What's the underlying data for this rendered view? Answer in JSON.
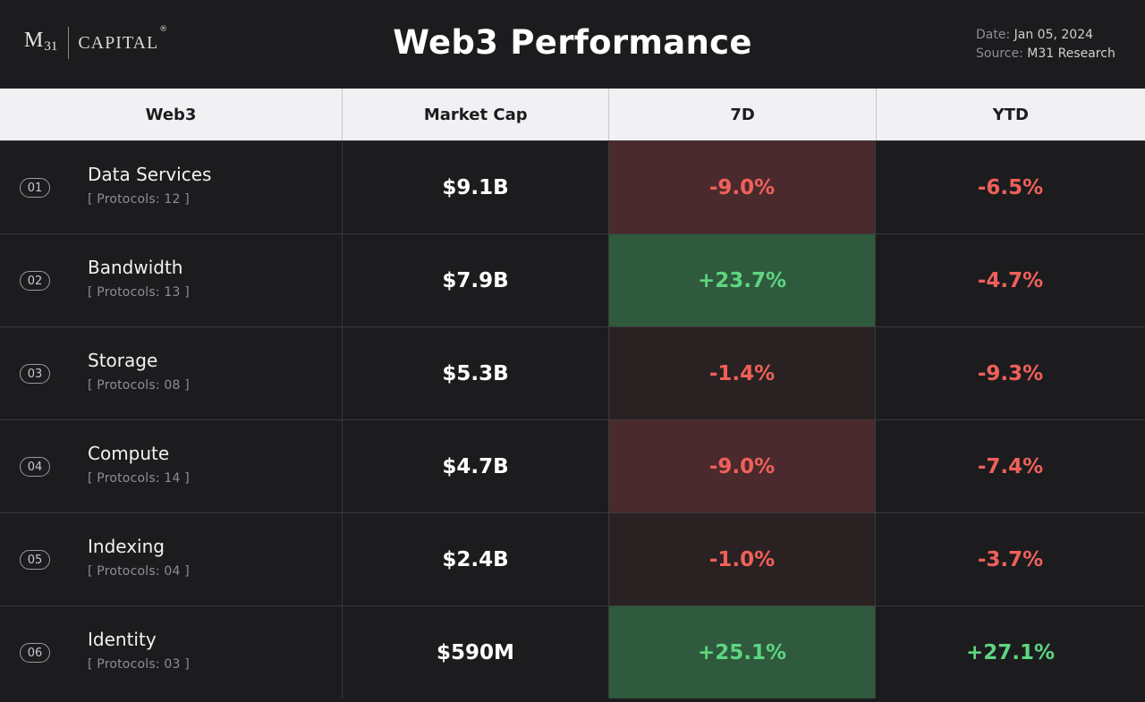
{
  "header": {
    "logo_m": "M",
    "logo_num": "31",
    "logo_name": "CAPITAL",
    "logo_reg": "®",
    "title": "Web3 Performance",
    "date_label": "Date:",
    "date_value": "Jan 05, 2024",
    "source_label": "Source:",
    "source_value": "M31 Research"
  },
  "colors": {
    "negative_text": "#f0605a",
    "positive_text": "#5ed680",
    "strong_negative_bg": "#4a2a2c",
    "weak_negative_bg": "#2a2222",
    "strong_positive_bg": "#2f5a3d",
    "neutral_bg": "#1c1c1e"
  },
  "chart_data": {
    "type": "table",
    "title": "Web3 Performance",
    "columns": [
      "Web3",
      "Market Cap",
      "7D",
      "YTD"
    ],
    "rows": [
      {
        "num": "01",
        "name": "Data Services",
        "protocols": "[ Protocols: 12 ]",
        "market_cap": "$9.1B",
        "d7": "-9.0%",
        "ytd": "-6.5%",
        "d7_value": -9.0,
        "ytd_value": -6.5
      },
      {
        "num": "02",
        "name": "Bandwidth",
        "protocols": "[ Protocols: 13 ]",
        "market_cap": "$7.9B",
        "d7": "+23.7%",
        "ytd": "-4.7%",
        "d7_value": 23.7,
        "ytd_value": -4.7
      },
      {
        "num": "03",
        "name": "Storage",
        "protocols": "[ Protocols: 08 ]",
        "market_cap": "$5.3B",
        "d7": "-1.4%",
        "ytd": "-9.3%",
        "d7_value": -1.4,
        "ytd_value": -9.3
      },
      {
        "num": "04",
        "name": "Compute",
        "protocols": "[ Protocols: 14 ]",
        "market_cap": "$4.7B",
        "d7": "-9.0%",
        "ytd": "-7.4%",
        "d7_value": -9.0,
        "ytd_value": -7.4
      },
      {
        "num": "05",
        "name": "Indexing",
        "protocols": "[ Protocols: 04 ]",
        "market_cap": "$2.4B",
        "d7": "-1.0%",
        "ytd": "-3.7%",
        "d7_value": -1.0,
        "ytd_value": -3.7
      },
      {
        "num": "06",
        "name": "Identity",
        "protocols": "[ Protocols: 03 ]",
        "market_cap": "$590M",
        "d7": "+25.1%",
        "ytd": "+27.1%",
        "d7_value": 25.1,
        "ytd_value": 27.1
      }
    ]
  }
}
